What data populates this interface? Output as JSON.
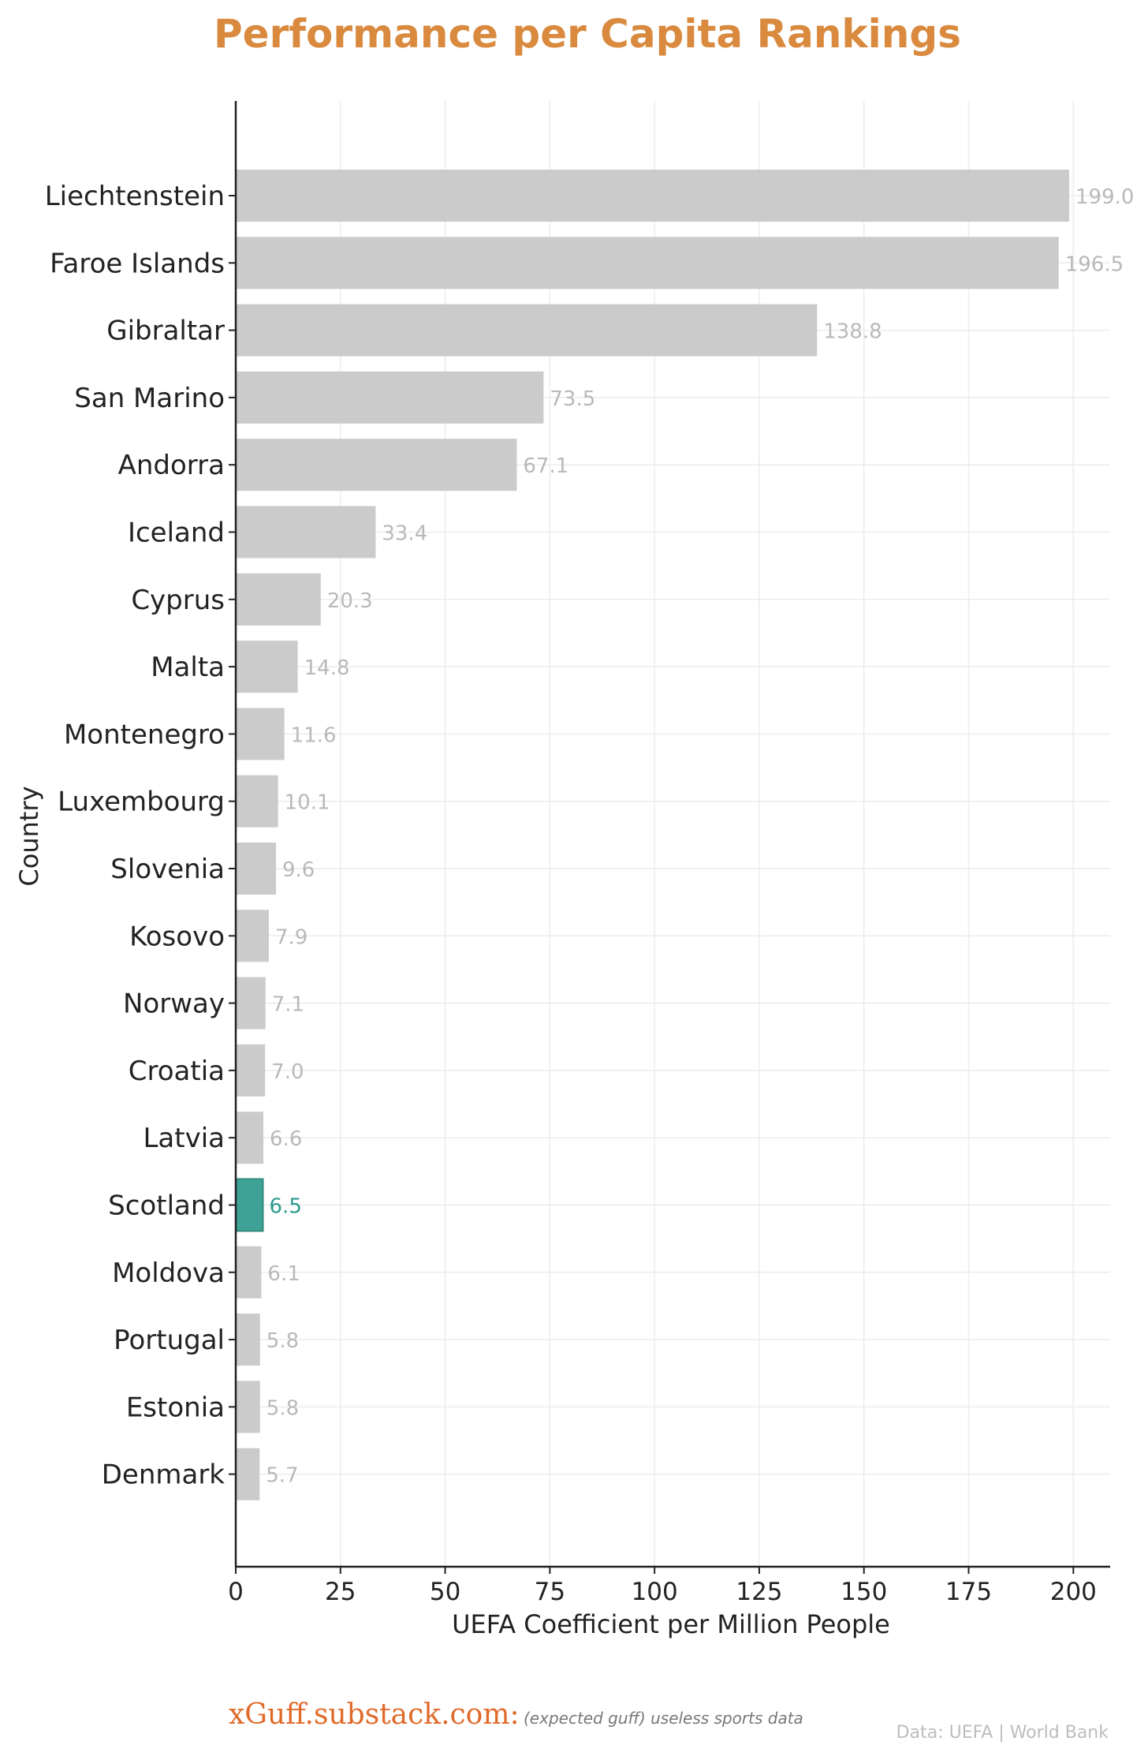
{
  "chart_data": {
    "type": "bar",
    "orientation": "horizontal",
    "title": "Performance per Capita Rankings",
    "xlabel": "UEFA Coefficient per Million People",
    "ylabel": "Country",
    "xlim": [
      0,
      208
    ],
    "xticks": [
      0,
      25,
      50,
      75,
      100,
      125,
      150,
      175,
      200
    ],
    "grid": true,
    "categories": [
      "Liechtenstein",
      "Faroe Islands",
      "Gibraltar",
      "San Marino",
      "Andorra",
      "Iceland",
      "Cyprus",
      "Malta",
      "Montenegro",
      "Luxembourg",
      "Slovenia",
      "Kosovo",
      "Norway",
      "Croatia",
      "Latvia",
      "Scotland",
      "Moldova",
      "Portugal",
      "Estonia",
      "Denmark"
    ],
    "values": [
      199.0,
      196.5,
      138.8,
      73.5,
      67.1,
      33.4,
      20.3,
      14.8,
      11.6,
      10.1,
      9.6,
      7.9,
      7.1,
      7.0,
      6.6,
      6.5,
      6.1,
      5.8,
      5.8,
      5.7
    ],
    "value_labels": [
      "199.0",
      "196.5",
      "138.8",
      "73.5",
      "67.1",
      "33.4",
      "20.3",
      "14.8",
      "11.6",
      "10.1",
      "9.6",
      "7.9",
      "7.1",
      "7.0",
      "6.6",
      "6.5",
      "6.1",
      "5.8",
      "5.8",
      "5.7"
    ],
    "highlight": "Scotland",
    "colors": {
      "bar": "#cbcbcb",
      "highlight": "#2a9a8b",
      "highlight_edge": "#1f7f72",
      "grid": "#ececec",
      "title": "#d98a3e"
    }
  },
  "footer": {
    "site": "xGuff.substack.com:",
    "tagline": "(expected guff) useless sports data",
    "source": "Data: UEFA | World Bank"
  }
}
